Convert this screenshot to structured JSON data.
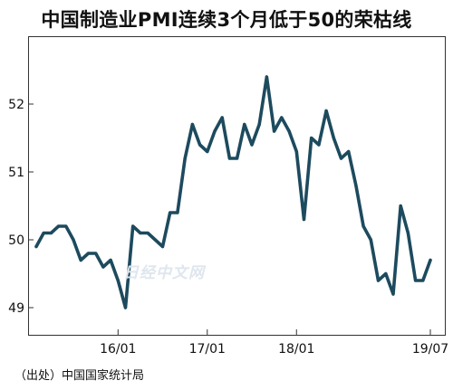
{
  "title": "中国制造业PMI连续3个月低于50的荣枯线",
  "source": "（出处）中国国家统计局",
  "watermark": "日经中文网",
  "colors": {
    "line": "#1d4a5e",
    "frame": "#333333",
    "text": "#111111"
  },
  "chart_data": {
    "type": "line",
    "title": "中国制造业PMI连续3个月低于50的荣枯线",
    "xlabel": "",
    "ylabel": "",
    "ylim": [
      48.6,
      53.0
    ],
    "yticks": [
      49,
      50,
      51,
      52
    ],
    "xtick_labels": [
      {
        "label": "16/01",
        "at": "2016-01"
      },
      {
        "label": "17/01",
        "at": "2017-01"
      },
      {
        "label": "18/01",
        "at": "2018-01"
      },
      {
        "label": "19/07",
        "at": "2019-07"
      }
    ],
    "grid": false,
    "legend": "none",
    "series": [
      {
        "x": [
          "2015-02",
          "2015-03",
          "2015-04",
          "2015-05",
          "2015-06",
          "2015-07",
          "2015-08",
          "2015-09",
          "2015-10",
          "2015-11",
          "2015-12",
          "2016-01",
          "2016-02",
          "2016-03",
          "2016-04",
          "2016-05",
          "2016-06",
          "2016-07",
          "2016-08",
          "2016-09",
          "2016-10",
          "2016-11",
          "2016-12",
          "2017-01",
          "2017-02",
          "2017-03",
          "2017-04",
          "2017-05",
          "2017-06",
          "2017-07",
          "2017-08",
          "2017-09",
          "2017-10",
          "2017-11",
          "2017-12",
          "2018-01",
          "2018-02",
          "2018-03",
          "2018-04",
          "2018-05",
          "2018-06",
          "2018-07",
          "2018-08",
          "2018-09",
          "2018-10",
          "2018-11",
          "2018-12",
          "2019-01",
          "2019-02",
          "2019-03",
          "2019-04",
          "2019-05",
          "2019-06",
          "2019-07"
        ],
        "values": [
          49.9,
          50.1,
          50.1,
          50.2,
          50.2,
          50.0,
          49.7,
          49.8,
          49.8,
          49.6,
          49.7,
          49.4,
          49.0,
          50.2,
          50.1,
          50.1,
          50.0,
          49.9,
          50.4,
          50.4,
          51.2,
          51.7,
          51.4,
          51.3,
          51.6,
          51.8,
          51.2,
          51.2,
          51.7,
          51.4,
          51.7,
          52.4,
          51.6,
          51.8,
          51.6,
          51.3,
          50.3,
          51.5,
          51.4,
          51.9,
          51.5,
          51.2,
          51.3,
          50.8,
          50.2,
          50.0,
          49.4,
          49.5,
          49.2,
          50.5,
          50.1,
          49.4,
          49.4,
          49.7
        ]
      }
    ]
  }
}
